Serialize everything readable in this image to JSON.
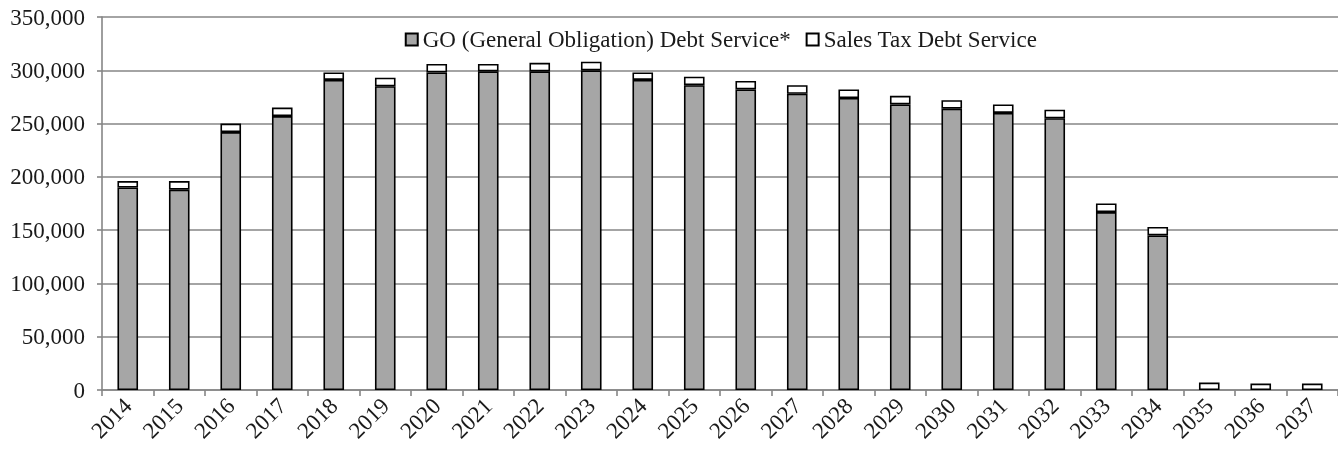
{
  "chart_data": {
    "type": "bar",
    "stacked": true,
    "categories": [
      "2014",
      "2015",
      "2016",
      "2017",
      "2018",
      "2019",
      "2020",
      "2021",
      "2022",
      "2023",
      "2024",
      "2025",
      "2026",
      "2027",
      "2028",
      "2029",
      "2030",
      "2031",
      "2032",
      "2033",
      "2034",
      "2035",
      "2036",
      "2037"
    ],
    "series": [
      {
        "name": "GO (General Obligation) Debt Service*",
        "color": "#a6a6a6",
        "values": [
          190000,
          188000,
          242000,
          257000,
          291000,
          285000,
          298000,
          299000,
          299000,
          300000,
          291000,
          286000,
          282000,
          278000,
          274000,
          268000,
          264000,
          260000,
          255000,
          167000,
          145000,
          null,
          null,
          null
        ]
      },
      {
        "name": "Sales Tax Debt Service",
        "color": "#ffffff",
        "values": [
          6000,
          8000,
          8000,
          8000,
          7000,
          8000,
          8000,
          7000,
          8000,
          8000,
          7000,
          8000,
          8000,
          8000,
          8000,
          8000,
          8000,
          8000,
          8000,
          8000,
          8000,
          7000,
          6000,
          6000
        ]
      }
    ],
    "ylim": [
      0,
      350000
    ],
    "yticks": [
      0,
      {
        "value": 50000,
        "label": "50,000"
      },
      {
        "value": 100000,
        "label": "100,000"
      },
      {
        "value": 150000,
        "label": "150,000"
      },
      {
        "value": 200000,
        "label": "200,000"
      },
      {
        "value": 250000,
        "label": "250,000"
      },
      {
        "value": 300000,
        "label": "300,000"
      },
      {
        "value": 350000,
        "label": "350,000"
      }
    ],
    "grid": "y",
    "legend": "top"
  }
}
